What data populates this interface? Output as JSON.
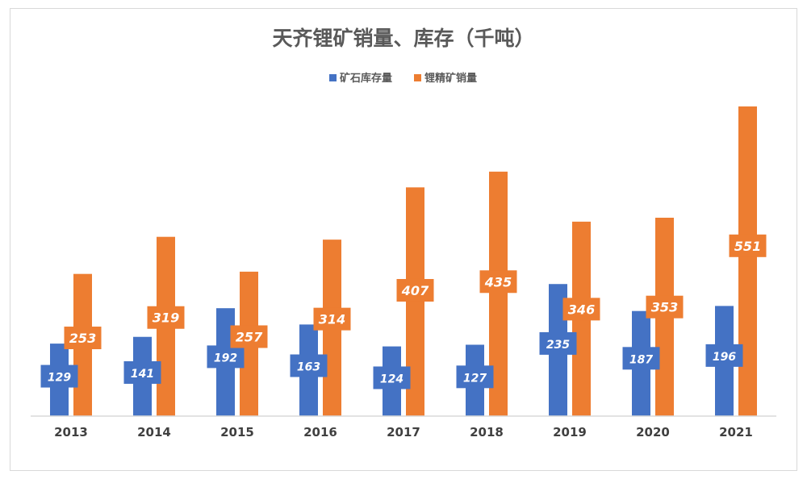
{
  "chart_data": {
    "type": "bar",
    "title": "天齐锂矿销量、库存（千吨）",
    "categories": [
      "2013",
      "2014",
      "2015",
      "2016",
      "2017",
      "2018",
      "2019",
      "2020",
      "2021"
    ],
    "series": [
      {
        "name": "矿石库存量",
        "color": "#4472c4",
        "values": [
          129,
          141,
          192,
          163,
          124,
          127,
          235,
          187,
          196
        ]
      },
      {
        "name": "锂精矿销量",
        "color": "#ed7d31",
        "values": [
          253,
          319,
          257,
          314,
          407,
          435,
          346,
          353,
          551
        ]
      }
    ],
    "xlabel": "",
    "ylabel": "",
    "ylim": [
      0,
      560
    ],
    "legend": "top-center",
    "grid": false
  }
}
